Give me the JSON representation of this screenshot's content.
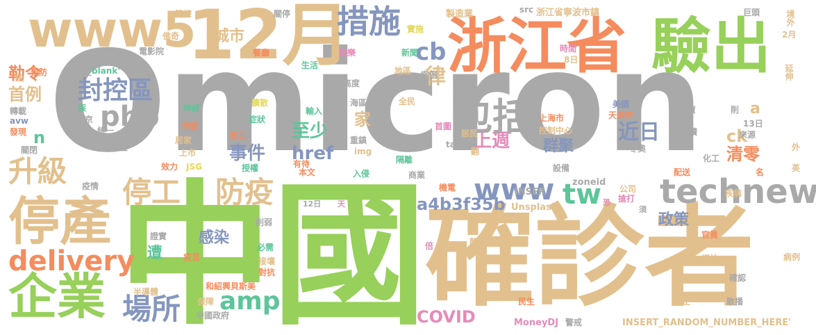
{
  "palette": {
    "gray": "#a9a9a9",
    "tan": "#e2c08d",
    "orange": "#f48c5e",
    "green": "#97d05a",
    "blue": "#8596be",
    "teal": "#5dc59a",
    "pink": "#e58bb8",
    "yellow": "#e4d85c",
    "darkgray": "#9a9a9a"
  },
  "words": [
    {
      "text": "Omicron",
      "color": "gray"
    },
    {
      "text": "確診者",
      "color": "tan"
    },
    {
      "text": "中國",
      "color": "green"
    },
    {
      "text": "12月",
      "color": "tan"
    },
    {
      "text": "浙江省",
      "color": "orange"
    },
    {
      "text": "驗出",
      "color": "green"
    },
    {
      "text": "www5",
      "color": "tan"
    },
    {
      "text": "停產",
      "color": "tan"
    },
    {
      "text": "企業",
      "color": "green"
    },
    {
      "text": "technews",
      "color": "gray"
    },
    {
      "text": "delivery",
      "color": "orange"
    },
    {
      "text": "包括",
      "color": "gray"
    },
    {
      "text": "措施",
      "color": "blue"
    },
    {
      "text": "php",
      "color": "gray"
    },
    {
      "text": "封控區",
      "color": "blue"
    },
    {
      "text": "停工",
      "color": "tan"
    },
    {
      "text": "防疫",
      "color": "tan"
    },
    {
      "text": "升級",
      "color": "tan"
    },
    {
      "text": "場所",
      "color": "blue"
    },
    {
      "text": "www",
      "color": "blue"
    },
    {
      "text": "tw",
      "color": "teal"
    },
    {
      "text": "amp",
      "color": "teal"
    },
    {
      "text": "近日",
      "color": "blue"
    },
    {
      "text": "cb",
      "color": "blue"
    },
    {
      "text": "律",
      "color": "tan"
    },
    {
      "text": "首例",
      "color": "tan"
    },
    {
      "text": "勒令",
      "color": "orange"
    },
    {
      "text": "城市",
      "color": "tan"
    },
    {
      "text": "事件",
      "color": "blue"
    },
    {
      "text": "至少",
      "color": "teal"
    },
    {
      "text": "href",
      "color": "blue"
    },
    {
      "text": "上週",
      "color": "pink"
    },
    {
      "text": "群聚",
      "color": "blue"
    },
    {
      "text": "清零",
      "color": "orange"
    },
    {
      "text": "a4b3f35b",
      "color": "blue"
    },
    {
      "text": "政策",
      "color": "blue"
    },
    {
      "text": "感染",
      "color": "blue"
    },
    {
      "text": "COVID",
      "color": "pink"
    },
    {
      "text": "家",
      "color": "tan"
    },
    {
      "text": "ck",
      "color": "tan"
    },
    {
      "text": "a",
      "color": "tan"
    },
    {
      "text": "n",
      "color": "teal"
    },
    {
      "text": "遭",
      "color": "teal"
    },
    {
      "text": "Unsplash",
      "color": "tan"
    },
    {
      "text": "zoneid",
      "color": "gray"
    },
    {
      "text": "INSER",
      "color": "gray"
    },
    {
      "text": "INSERT_RANDOM_NUMBER_HERE'",
      "color": "tan"
    },
    {
      "text": "MoneyDJ",
      "color": "pink"
    },
    {
      "text": "浙江省寧波市鎮",
      "color": "tan"
    },
    {
      "text": "製造業",
      "color": "tan"
    },
    {
      "text": "關停",
      "color": "gray"
    },
    {
      "text": "管控",
      "color": "tan"
    },
    {
      "text": "src",
      "color": "gray"
    },
    {
      "text": "巨頭",
      "color": "gray"
    },
    {
      "text": "境外",
      "color": "tan"
    },
    {
      "text": "2月",
      "color": "tan"
    },
    {
      "text": "延伸",
      "color": "tan"
    },
    {
      "text": "佛奇",
      "color": "tan"
    },
    {
      "text": "電影院",
      "color": "gray"
    },
    {
      "text": "餐廳",
      "color": "orange"
    },
    {
      "text": "娛樂",
      "color": "pink"
    },
    {
      "text": "新聞",
      "color": "teal"
    },
    {
      "text": "實施",
      "color": "yellow"
    },
    {
      "text": "時間",
      "color": "pink"
    },
    {
      "text": "8日",
      "color": "tan"
    },
    {
      "text": "快",
      "color": "tan"
    },
    {
      "text": "預防",
      "color": "orange"
    },
    {
      "text": "_blank'",
      "color": "teal"
    },
    {
      "text": "生活",
      "color": "teal"
    },
    {
      "text": "地區",
      "color": "tan"
    },
    {
      "text": "案例",
      "color": "gray"
    },
    {
      "text": "復工",
      "color": "gray"
    },
    {
      "text": "高度",
      "color": "gray"
    },
    {
      "text": "舉辦",
      "color": "gray"
    },
    {
      "text": "採",
      "color": "teal"
    },
    {
      "text": "神經",
      "color": "teal"
    },
    {
      "text": "症狀",
      "color": "teal"
    },
    {
      "text": "擴散",
      "color": "yellow"
    },
    {
      "text": "海區",
      "color": "gray"
    },
    {
      "text": "全民",
      "color": "tan"
    },
    {
      "text": "美國",
      "color": "blue"
    },
    {
      "text": "天津市",
      "color": "orange"
    },
    {
      "text": "物資",
      "color": "gray"
    },
    {
      "text": "削",
      "color": "gray"
    },
    {
      "text": "轉載",
      "color": "gray"
    },
    {
      "text": "avw",
      "color": "blue"
    },
    {
      "text": "北京",
      "color": "gray"
    },
    {
      "text": "統一",
      "color": "gray"
    },
    {
      "text": "世衛",
      "color": "orange"
    },
    {
      "text": "輸入",
      "color": "teal"
    },
    {
      "text": "上海市",
      "color": "orange"
    },
    {
      "text": "控制中心",
      "color": "tan"
    },
    {
      "text": "13日",
      "color": "gray"
    },
    {
      "text": "來源",
      "color": "gray"
    },
    {
      "text": "閱讀",
      "color": "gray"
    },
    {
      "text": "發現",
      "color": "orange"
    },
    {
      "text": "晶盛",
      "color": "gray"
    },
    {
      "text": "第三",
      "color": "orange"
    },
    {
      "text": "首圖",
      "color": "pink"
    },
    {
      "text": "居民",
      "color": "tan"
    },
    {
      "text": "重鎮",
      "color": "gray"
    },
    {
      "text": "關閉",
      "color": "gray"
    },
    {
      "text": "居家",
      "color": "tan"
    },
    {
      "text": "img",
      "color": "tan"
    },
    {
      "text": "target",
      "color": "gray"
    },
    {
      "text": "翻",
      "color": "tan"
    },
    {
      "text": "冬奧",
      "color": "gray"
    },
    {
      "text": "化工",
      "color": "gray"
    },
    {
      "text": "外",
      "color": "tan"
    },
    {
      "text": "上市",
      "color": "tan"
    },
    {
      "text": "效力",
      "color": "orange"
    },
    {
      "text": "JSG",
      "color": "yellow"
    },
    {
      "text": "授權",
      "color": "teal"
    },
    {
      "text": "有待",
      "color": "orange"
    },
    {
      "text": "本文",
      "color": "orange"
    },
    {
      "text": "入侵",
      "color": "teal"
    },
    {
      "text": "隔離",
      "color": "teal"
    },
    {
      "text": "商業",
      "color": "gray"
    },
    {
      "text": "設備",
      "color": "gray"
    },
    {
      "text": "配送",
      "color": "orange"
    },
    {
      "text": "英",
      "color": "tan"
    },
    {
      "text": "名",
      "color": "orange"
    },
    {
      "text": "疫情",
      "color": "gray"
    },
    {
      "text": "機電",
      "color": "orange"
    },
    {
      "text": "公司",
      "color": "tan"
    },
    {
      "text": "搶打",
      "color": "pink"
    },
    {
      "text": "疾病",
      "color": "tan"
    },
    {
      "text": "12日",
      "color": "gray"
    },
    {
      "text": "天",
      "color": "pink"
    },
    {
      "text": "恐",
      "color": "pink"
    },
    {
      "text": "須",
      "color": "gray"
    },
    {
      "text": "削弱",
      "color": "gray"
    },
    {
      "text": "官員",
      "color": "orange"
    },
    {
      "text": "證實",
      "color": "gray"
    },
    {
      "text": "疫苗",
      "color": "orange"
    },
    {
      "text": "必需",
      "color": "teal"
    },
    {
      "text": "接壤",
      "color": "tan"
    },
    {
      "text": "對抗",
      "color": "orange"
    },
    {
      "text": "倍",
      "color": "pink"
    },
    {
      "text": "顏",
      "color": "tan"
    },
    {
      "text": "繃緊",
      "color": "tan"
    },
    {
      "text": "網站",
      "color": "tan"
    },
    {
      "text": "病例",
      "color": "tan"
    },
    {
      "text": "半導體",
      "color": "tan"
    },
    {
      "text": "和紹興貝斯美",
      "color": "orange"
    },
    {
      "text": "確認",
      "color": "gray"
    },
    {
      "text": "保障",
      "color": "tan"
    },
    {
      "text": "民生",
      "color": "orange"
    },
    {
      "text": "禁止",
      "color": "tan"
    },
    {
      "text": "散播",
      "color": "gray"
    },
    {
      "text": "中國政府",
      "color": "gray"
    },
    {
      "text": "警戒",
      "color": "gray"
    }
  ]
}
